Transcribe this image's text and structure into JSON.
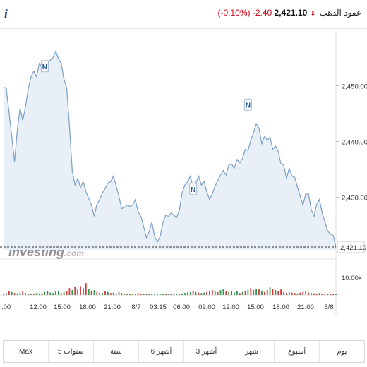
{
  "header": {
    "info_icon": "i",
    "title": "عقود الذهب",
    "price": "2,421.10",
    "change": "-2.40",
    "change_pct": "(-0.10%)",
    "direction_icon": "down-arrow-icon",
    "direction_glyph": "⬇"
  },
  "colors": {
    "line": "#7c9fc4",
    "fill": "#e8eff7",
    "negative": "#d0021b",
    "vol_up": "#2e9c4f",
    "vol_down": "#d23a3a"
  },
  "chart_data": {
    "type": "area",
    "ylim": [
      2420.6,
      2458.4
    ],
    "y_ticks": [
      2450,
      2440,
      2430
    ],
    "y_tick_labels": [
      "2,450.00",
      "2,440.00",
      "2,430.00"
    ],
    "last_price": 2421.1,
    "last_price_label": "2,421.10",
    "x_tick_labels": [
      ":00",
      "12:00",
      "15:00",
      "18:00",
      "21:00",
      "8/7",
      "03:15",
      "06:00",
      "09:00",
      "12:00",
      "15:00",
      "18:00",
      "21:00",
      "8/8"
    ],
    "values": [
      2449.8,
      2449.5,
      2445.2,
      2440.8,
      2436.4,
      2442.0,
      2446.0,
      2443.8,
      2446.2,
      2449.4,
      2451.6,
      2452.6,
      2451.6,
      2454.0,
      2453.4,
      2454.2,
      2454.0,
      2454.6,
      2455.0,
      2456.2,
      2454.8,
      2454.0,
      2451.2,
      2449.6,
      2442.8,
      2434.8,
      2432.2,
      2433.4,
      2431.8,
      2432.8,
      2431.0,
      2429.8,
      2428.6,
      2426.6,
      2428.8,
      2429.6,
      2430.8,
      2431.6,
      2432.6,
      2432.8,
      2433.8,
      2432.0,
      2430.2,
      2428.0,
      2428.2,
      2428.6,
      2428.4,
      2428.6,
      2429.6,
      2427.4,
      2426.6,
      2424.8,
      2422.8,
      2423.8,
      2425.6,
      2423.0,
      2422.0,
      2423.0,
      2425.4,
      2426.8,
      2426.6,
      2427.2,
      2426.8,
      2426.4,
      2427.6,
      2430.8,
      2432.2,
      2432.8,
      2433.8,
      2431.8,
      2432.6,
      2433.8,
      2432.2,
      2432.8,
      2431.0,
      2429.6,
      2430.6,
      2432.0,
      2433.0,
      2434.0,
      2434.8,
      2434.0,
      2435.8,
      2436.0,
      2435.2,
      2436.8,
      2436.2,
      2437.0,
      2438.6,
      2438.4,
      2440.2,
      2441.6,
      2443.2,
      2442.4,
      2439.6,
      2441.0,
      2440.2,
      2440.8,
      2438.6,
      2439.2,
      2438.2,
      2436.0,
      2435.8,
      2433.4,
      2435.2,
      2433.8,
      2433.6,
      2431.8,
      2430.2,
      2428.6,
      2430.6,
      2430.6,
      2427.8,
      2426.6,
      2428.8,
      2429.6,
      2427.2,
      2425.6,
      2424.0,
      2423.4,
      2423.2,
      2421.1
    ],
    "volume_axis_label": "10.00k",
    "volume": [
      0.05,
      0.1,
      0.2,
      0.15,
      0.1,
      0.08,
      0.12,
      0.18,
      0.1,
      0.05,
      0.04,
      0.06,
      0.1,
      0.08,
      0.1,
      0.15,
      0.2,
      0.12,
      0.1,
      0.18,
      0.2,
      0.1,
      0.15,
      0.2,
      0.35,
      0.25,
      0.4,
      0.3,
      0.45,
      0.35,
      0.6,
      0.3,
      0.2,
      0.25,
      0.15,
      0.12,
      0.1,
      0.2,
      0.15,
      0.1,
      0.12,
      0.08,
      0.15,
      0.1,
      0.05,
      0.06,
      0.04,
      0.08,
      0.05,
      0.1,
      0.06,
      0.05,
      0.07,
      0.04,
      0.06,
      0.05,
      0.04,
      0.05,
      0.06,
      0.07,
      0.05,
      0.06,
      0.08,
      0.07,
      0.06,
      0.08,
      0.1,
      0.12,
      0.15,
      0.2,
      0.15,
      0.12,
      0.1,
      0.12,
      0.15,
      0.2,
      0.25,
      0.2,
      0.15,
      0.25,
      0.3,
      0.2,
      0.15,
      0.2,
      0.12,
      0.18,
      0.1,
      0.15,
      0.2,
      0.25,
      0.35,
      0.25,
      0.3,
      0.28,
      0.2,
      0.15,
      0.25,
      0.4,
      0.3,
      0.25,
      0.2,
      0.28,
      0.15,
      0.1,
      0.15,
      0.12,
      0.1,
      0.08,
      0.12,
      0.15,
      0.2,
      0.12,
      0.1,
      0.08,
      0.06,
      0.1,
      0.05,
      0.04,
      0.03,
      0.05,
      0.04,
      0.03
    ],
    "volume_up": [
      0,
      1,
      0,
      1,
      0,
      1,
      1,
      0,
      1,
      0,
      1,
      0,
      1,
      1,
      0,
      1,
      0,
      1,
      1,
      0,
      1,
      0,
      1,
      0,
      0,
      1,
      0,
      1,
      0,
      0,
      0,
      1,
      0,
      1,
      0,
      1,
      1,
      0,
      1,
      0,
      1,
      0,
      1,
      0,
      1,
      0,
      1,
      0,
      1,
      0,
      0,
      1,
      0,
      1,
      0,
      1,
      0,
      1,
      1,
      0,
      1,
      0,
      1,
      1,
      0,
      1,
      1,
      0,
      1,
      0,
      1,
      0,
      1,
      1,
      0,
      1,
      0,
      1,
      0,
      1,
      1,
      0,
      1,
      0,
      1,
      1,
      0,
      1,
      0,
      1,
      0,
      1,
      1,
      0,
      1,
      0,
      0,
      1,
      0,
      1,
      0,
      0,
      1,
      0,
      1,
      0,
      0,
      1,
      0,
      0,
      1,
      0,
      1,
      0,
      0,
      1,
      0,
      0,
      1,
      0,
      0,
      1
    ],
    "markers": [
      {
        "label": "N",
        "value": 2453.5
      },
      {
        "label": "N",
        "value": 2431.5
      },
      {
        "label": "N",
        "value": 2446.6
      }
    ]
  },
  "watermark": {
    "brand": "Investing",
    "suffix": ".com"
  },
  "periods": [
    "يوم",
    "أسبوع",
    "شهر",
    "3 أشهر",
    "6 أشهر",
    "سنة",
    "5 سنوات",
    "Max"
  ]
}
